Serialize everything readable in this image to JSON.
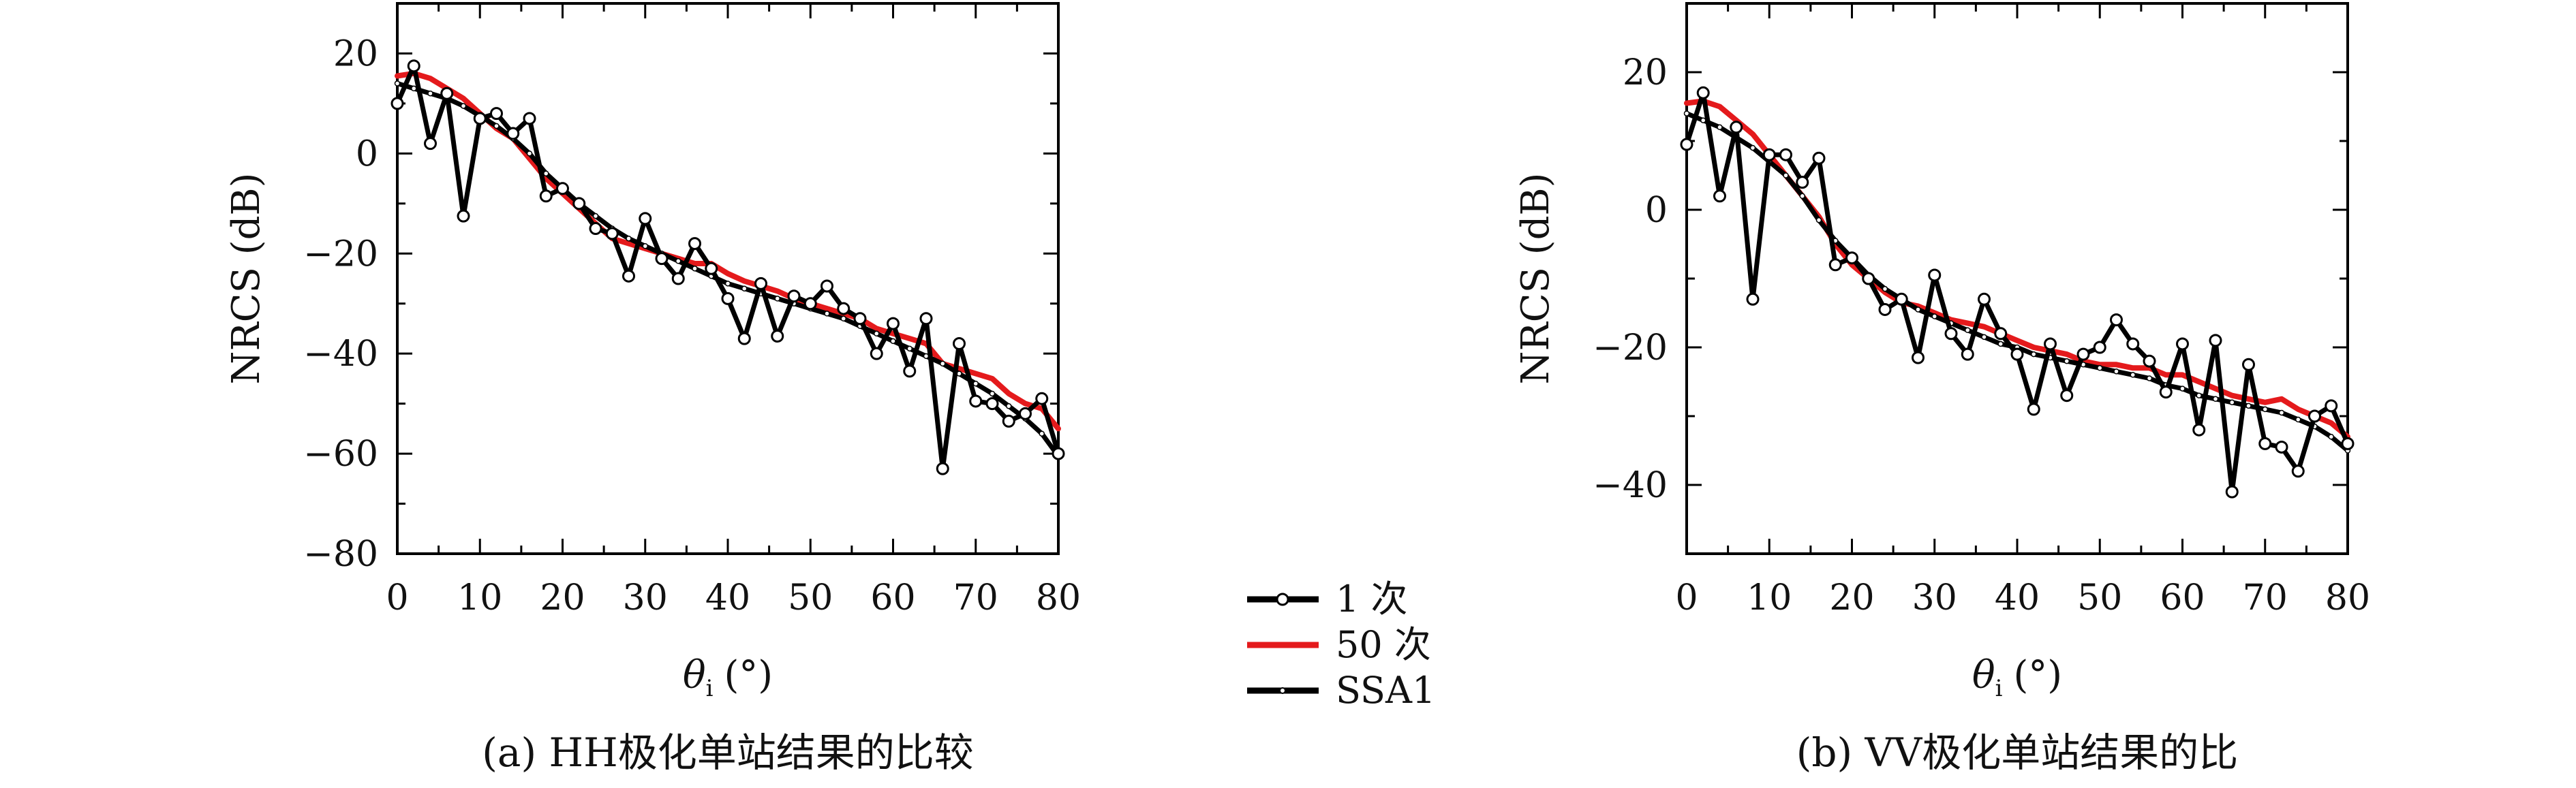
{
  "legend": {
    "items": [
      {
        "label": "1 次",
        "color": "#000000",
        "marker": "open-circle"
      },
      {
        "label": "50 次",
        "color": "#e41a1c",
        "marker": "none"
      },
      {
        "label": "SSA1",
        "color": "#000000",
        "marker": "small-dot"
      }
    ]
  },
  "chart_data": [
    {
      "type": "line",
      "caption": "(a) HH极化单站结果的比较",
      "xlabel_main": "θ",
      "xlabel_sub": "i",
      "xlabel_unit": "(°)",
      "ylabel": "NRCS (dB)",
      "xlim": [
        0,
        80
      ],
      "ylim": [
        -80,
        30
      ],
      "xticks": [
        0,
        10,
        20,
        30,
        40,
        50,
        60,
        70,
        80
      ],
      "yticks": [
        20,
        0,
        -20,
        -40,
        -60,
        -80
      ],
      "x": [
        0,
        2,
        4,
        6,
        8,
        10,
        12,
        14,
        16,
        18,
        20,
        22,
        24,
        26,
        28,
        30,
        32,
        34,
        36,
        38,
        40,
        42,
        44,
        46,
        48,
        50,
        52,
        54,
        56,
        58,
        60,
        62,
        64,
        66,
        68,
        70,
        72,
        74,
        76,
        78,
        80
      ],
      "series": [
        {
          "name": "1 次",
          "color": "#000000",
          "values": [
            10,
            17.5,
            2,
            12,
            -12.5,
            7,
            8,
            4,
            7,
            -8.5,
            -7,
            -10,
            -15,
            -16,
            -24.5,
            -13,
            -21,
            -25,
            -18,
            -23,
            -29,
            -37,
            -26,
            -36.5,
            -28.5,
            -30,
            -26.5,
            -31,
            -33,
            -40,
            -34,
            -43.5,
            -33,
            -63,
            -38,
            -49.5,
            -50,
            -53.5,
            -52,
            -49,
            -60
          ]
        },
        {
          "name": "50 次",
          "color": "#e41a1c",
          "values": [
            15.5,
            16,
            15,
            13,
            11,
            8,
            5,
            3,
            -1,
            -5,
            -8,
            -11,
            -14,
            -17,
            -18,
            -19,
            -20,
            -21,
            -22,
            -22,
            -24,
            -25.5,
            -26.5,
            -27.5,
            -29,
            -30,
            -31,
            -32,
            -33,
            -35,
            -36,
            -37,
            -38,
            -42,
            -43,
            -44,
            -45,
            -48,
            -50,
            -51,
            -55
          ]
        },
        {
          "name": "SSA1",
          "color": "#000000",
          "values": [
            14,
            13,
            12,
            11,
            9.5,
            7.5,
            5.5,
            3,
            0,
            -4,
            -7,
            -10,
            -12.5,
            -15,
            -17,
            -18.5,
            -20,
            -21.5,
            -23,
            -24.5,
            -26,
            -27,
            -28,
            -29,
            -30,
            -31,
            -32,
            -33,
            -34.5,
            -36,
            -37.5,
            -39,
            -40.5,
            -42,
            -44,
            -46,
            -48,
            -50.5,
            -53,
            -56,
            -60.5
          ]
        }
      ]
    },
    {
      "type": "line",
      "caption": "(b) VV极化单站结果的比",
      "xlabel_main": "θ",
      "xlabel_sub": "i",
      "xlabel_unit": "(°)",
      "ylabel": "NRCS (dB)",
      "xlim": [
        0,
        80
      ],
      "ylim": [
        -50,
        30
      ],
      "xticks": [
        0,
        10,
        20,
        30,
        40,
        50,
        60,
        70,
        80
      ],
      "yticks": [
        20,
        0,
        -20,
        -40
      ],
      "x": [
        0,
        2,
        4,
        6,
        8,
        10,
        12,
        14,
        16,
        18,
        20,
        22,
        24,
        26,
        28,
        30,
        32,
        34,
        36,
        38,
        40,
        42,
        44,
        46,
        48,
        50,
        52,
        54,
        56,
        58,
        60,
        62,
        64,
        66,
        68,
        70,
        72,
        74,
        76,
        78,
        80
      ],
      "series": [
        {
          "name": "1 次",
          "color": "#000000",
          "values": [
            9.5,
            17,
            2,
            12,
            -13,
            8,
            8,
            4,
            7.5,
            -8,
            -7,
            -10,
            -14.5,
            -13,
            -21.5,
            -9.5,
            -18,
            -21,
            -13,
            -18,
            -21,
            -29,
            -19.5,
            -27,
            -21,
            -20,
            -16,
            -19.5,
            -22,
            -26.5,
            -19.5,
            -32,
            -19,
            -41,
            -22.5,
            -34,
            -34.5,
            -38,
            -30,
            -28.5,
            -34
          ]
        },
        {
          "name": "50 次",
          "color": "#e41a1c",
          "values": [
            15.5,
            15.8,
            15,
            13,
            11,
            8,
            5,
            2,
            -1,
            -5,
            -8,
            -10,
            -12,
            -13.5,
            -14,
            -15,
            -16,
            -16.5,
            -17,
            -18,
            -19,
            -20,
            -20.5,
            -21,
            -22,
            -22.5,
            -22.5,
            -23,
            -23,
            -24,
            -24,
            -25,
            -26,
            -27,
            -27.5,
            -28,
            -27.5,
            -29,
            -30,
            -31,
            -33
          ]
        },
        {
          "name": "SSA1",
          "color": "#000000",
          "values": [
            14,
            13,
            12,
            10.5,
            9,
            7,
            5,
            2,
            -1.5,
            -4.5,
            -7,
            -9.5,
            -11.5,
            -13,
            -14.5,
            -15.5,
            -16.5,
            -17.5,
            -18.5,
            -19.5,
            -20,
            -21,
            -21.5,
            -22,
            -22.5,
            -23,
            -23.5,
            -24,
            -24.5,
            -25.5,
            -26,
            -27,
            -27.5,
            -28,
            -28.5,
            -29,
            -29.5,
            -30.5,
            -31.5,
            -33,
            -35
          ]
        }
      ]
    }
  ]
}
